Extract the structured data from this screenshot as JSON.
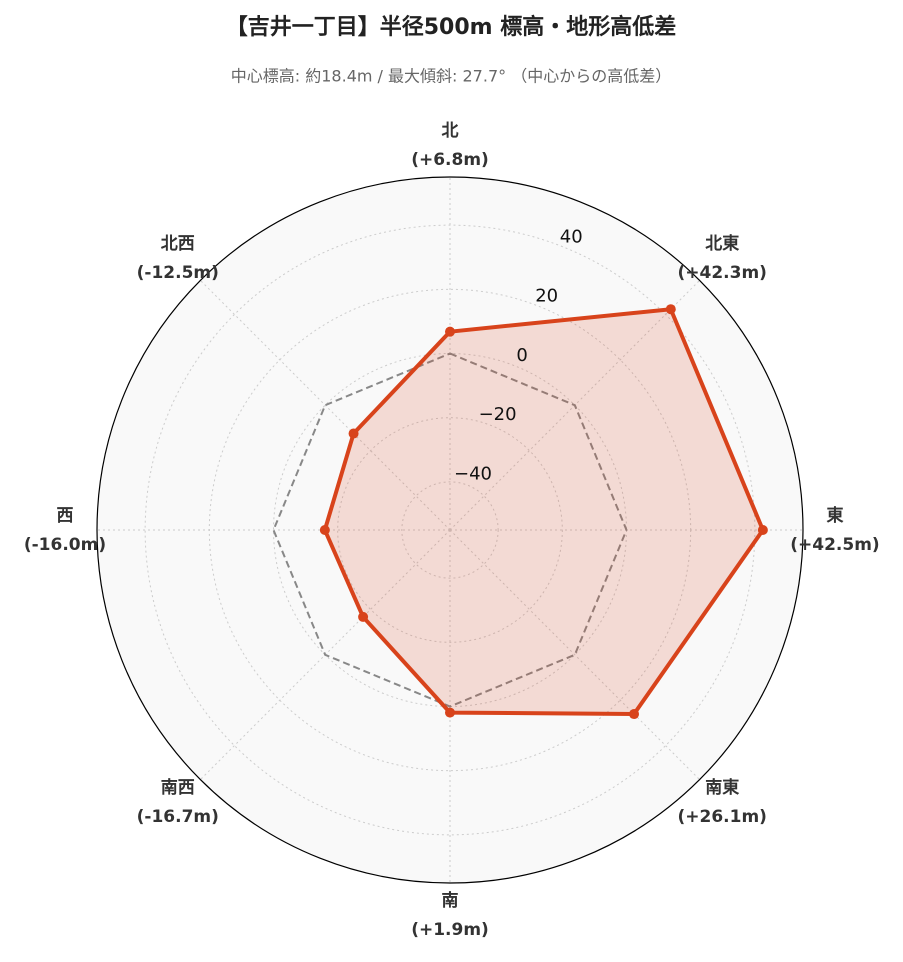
{
  "chart_data": {
    "type": "radar",
    "title": "【吉井一丁目】半径500m 標高・地形高低差",
    "subtitle": "中心標高: 約18.4m / 最大傾斜: 27.7° （中心からの高低差）",
    "categories": [
      "北",
      "北東",
      "東",
      "南東",
      "南",
      "南西",
      "西",
      "北西"
    ],
    "values": [
      6.8,
      42.3,
      42.5,
      26.1,
      1.9,
      -16.7,
      -16.0,
      -12.5
    ],
    "value_labels": [
      "(+6.8m)",
      "(+42.3m)",
      "(+42.5m)",
      "(+26.1m)",
      "(+1.9m)",
      "(-16.7m)",
      "(-16.0m)",
      "(-12.5m)"
    ],
    "color": "#d8431b",
    "ylim": [
      -55,
      55
    ],
    "yticks": [
      {
        "value": -40,
        "label": "−40"
      },
      {
        "value": -20,
        "label": "−20"
      },
      0,
      20,
      40
    ],
    "reference_value": 0,
    "grid": true
  }
}
